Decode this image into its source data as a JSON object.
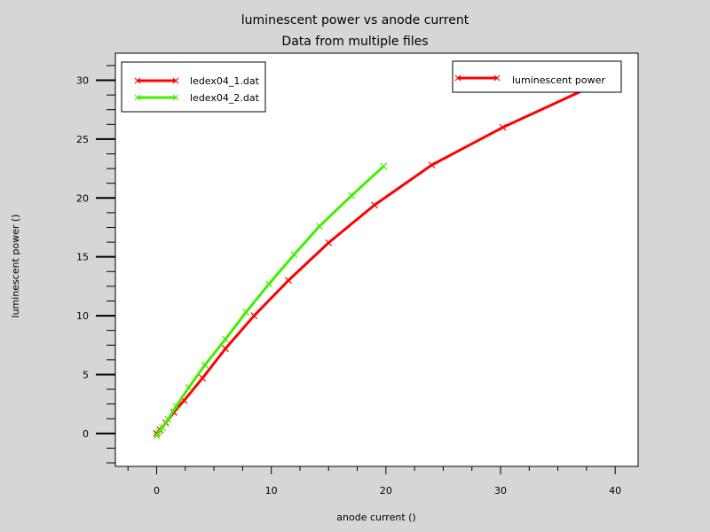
{
  "chart_data": {
    "type": "line",
    "title": "luminescent power vs anode current",
    "subtitle": "Data from multiple files",
    "xlabel": "anode current ()",
    "ylabel": "luminescent power ()",
    "xlim": [
      -3.6,
      42
    ],
    "ylim": [
      -2.8,
      32.3
    ],
    "x_ticks": [
      0,
      10,
      20,
      30,
      40
    ],
    "y_ticks": [
      0,
      5,
      10,
      15,
      20,
      25,
      30
    ],
    "grid": false,
    "legend_position": "top-left",
    "legend2_label": "luminescent power",
    "series": [
      {
        "name": "ledex04_1.dat",
        "color": "#ff0000",
        "marker": "x",
        "points": [
          [
            0,
            0
          ],
          [
            0.3,
            0.3
          ],
          [
            0.8,
            0.9
          ],
          [
            1.5,
            1.8
          ],
          [
            2.4,
            2.8
          ],
          [
            4,
            4.7
          ],
          [
            6,
            7.2
          ],
          [
            8.5,
            10
          ],
          [
            11.5,
            13
          ],
          [
            15,
            16.2
          ],
          [
            19,
            19.4
          ],
          [
            24,
            22.8
          ],
          [
            30.2,
            26
          ],
          [
            38,
            29.5
          ]
        ]
      },
      {
        "name": "ledex04_2.dat",
        "color": "#44ee00",
        "marker": "x",
        "points": [
          [
            0,
            -0.2
          ],
          [
            0.2,
            0.1
          ],
          [
            0.5,
            0.5
          ],
          [
            1,
            1.2
          ],
          [
            1.7,
            2.3
          ],
          [
            2.8,
            3.9
          ],
          [
            4.2,
            5.8
          ],
          [
            6,
            8
          ],
          [
            7.8,
            10.3
          ],
          [
            9.8,
            12.7
          ],
          [
            12,
            15.2
          ],
          [
            14.2,
            17.6
          ],
          [
            17,
            20.2
          ],
          [
            19.8,
            22.7
          ]
        ]
      }
    ]
  }
}
